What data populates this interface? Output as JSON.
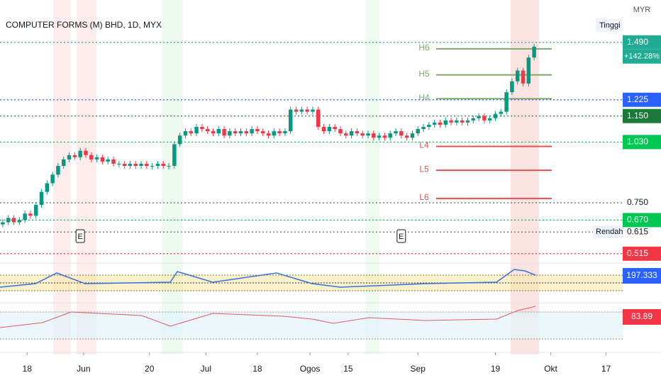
{
  "chart_data": {
    "type": "candlestick",
    "title": "COMPUTER FORMS (M) BHD, 1D, MYX",
    "currency": "MYR",
    "open": [
      0.65,
      0.66,
      0.68,
      0.66,
      0.67,
      0.7,
      0.69,
      0.74,
      0.8,
      0.84,
      0.88,
      0.92,
      0.95,
      0.97,
      0.96,
      0.99,
      0.97,
      0.95,
      0.96,
      0.94,
      0.95,
      0.93,
      0.93,
      0.92,
      0.93,
      0.92,
      0.93,
      0.92,
      0.92,
      0.93,
      0.92,
      0.92,
      1.02,
      1.06,
      1.08,
      1.07,
      1.1,
      1.09,
      1.08,
      1.07,
      1.09,
      1.06,
      1.08,
      1.07,
      1.08,
      1.07,
      1.09,
      1.08,
      1.07,
      1.06,
      1.08,
      1.07,
      1.08,
      1.18,
      1.17,
      1.18,
      1.17,
      1.18,
      1.1,
      1.08,
      1.1,
      1.09,
      1.07,
      1.06,
      1.08,
      1.07,
      1.06,
      1.07,
      1.05,
      1.06,
      1.05,
      1.07,
      1.08,
      1.06,
      1.05,
      1.07,
      1.09,
      1.1,
      1.11,
      1.12,
      1.11,
      1.13,
      1.12,
      1.13,
      1.12,
      1.13,
      1.14,
      1.15,
      1.13,
      1.14,
      1.16,
      1.17,
      1.26,
      1.31,
      1.36,
      1.3,
      1.42
    ],
    "close": [
      0.66,
      0.68,
      0.66,
      0.67,
      0.7,
      0.69,
      0.74,
      0.8,
      0.84,
      0.88,
      0.92,
      0.95,
      0.97,
      0.96,
      0.99,
      0.97,
      0.95,
      0.96,
      0.94,
      0.95,
      0.93,
      0.93,
      0.92,
      0.93,
      0.92,
      0.93,
      0.92,
      0.92,
      0.93,
      0.92,
      0.92,
      1.02,
      1.06,
      1.08,
      1.07,
      1.1,
      1.09,
      1.08,
      1.07,
      1.09,
      1.06,
      1.08,
      1.07,
      1.08,
      1.07,
      1.09,
      1.08,
      1.07,
      1.06,
      1.08,
      1.07,
      1.08,
      1.18,
      1.17,
      1.18,
      1.17,
      1.18,
      1.1,
      1.08,
      1.1,
      1.09,
      1.07,
      1.06,
      1.08,
      1.07,
      1.06,
      1.07,
      1.05,
      1.06,
      1.05,
      1.07,
      1.08,
      1.06,
      1.05,
      1.07,
      1.09,
      1.1,
      1.11,
      1.12,
      1.11,
      1.13,
      1.12,
      1.13,
      1.12,
      1.13,
      1.14,
      1.15,
      1.13,
      1.14,
      1.16,
      1.17,
      1.26,
      1.31,
      1.36,
      1.3,
      1.42,
      1.47
    ],
    "up_color": "#089981",
    "down_color": "#f23645",
    "xlim": [
      -0.5,
      112
    ],
    "xticks": [
      {
        "value": 4.4,
        "label": "18"
      },
      {
        "value": 14.6,
        "label": "Jun"
      },
      {
        "value": 26.5,
        "label": "20"
      },
      {
        "value": 36.7,
        "label": "Jul"
      },
      {
        "value": 46,
        "label": "18"
      },
      {
        "value": 55.5,
        "label": "Ogos"
      },
      {
        "value": 62.4,
        "label": "15"
      },
      {
        "value": 75,
        "label": "Sep"
      },
      {
        "value": 89,
        "label": "19"
      },
      {
        "value": 99,
        "label": "Okt"
      },
      {
        "value": 109,
        "label": "17"
      }
    ],
    "ylim": [
      0.475,
      1.62
    ],
    "price_labels": [
      {
        "value": 1.49,
        "label": "1.490",
        "color": "#22ab94"
      },
      {
        "value": 1.225,
        "label": "1.225",
        "color": "#2962ff"
      },
      {
        "value": 1.15,
        "label": "1.150",
        "color": "#1b7a3a"
      },
      {
        "value": 1.03,
        "label": "1.030",
        "color": "#00c853"
      },
      {
        "value": 0.75,
        "label": "0.750",
        "color": null
      },
      {
        "value": 0.67,
        "label": "0.670",
        "color": "#00c853"
      },
      {
        "value": 0.615,
        "label": "0.615",
        "color": null
      },
      {
        "value": 0.515,
        "label": "0.515",
        "color": "#f23645"
      }
    ],
    "change_label": "+142.28%",
    "high_label": "Tinggi",
    "low_label": "Rendah",
    "levels": [
      {
        "name": "H6",
        "value": 1.46,
        "color": "#7fa86b"
      },
      {
        "name": "H5",
        "value": 1.34,
        "color": "#7fa86b"
      },
      {
        "name": "H4",
        "value": 1.23,
        "color": "#7fa86b"
      },
      {
        "name": "L4",
        "value": 1.01,
        "color": "#e05050"
      },
      {
        "name": "L5",
        "value": 0.9,
        "color": "#e05050"
      },
      {
        "name": "L6",
        "value": 0.77,
        "color": "#e05050"
      }
    ],
    "earnings_marker": "E",
    "oscillator_label": "197.333",
    "rsi_label": "83.89"
  }
}
